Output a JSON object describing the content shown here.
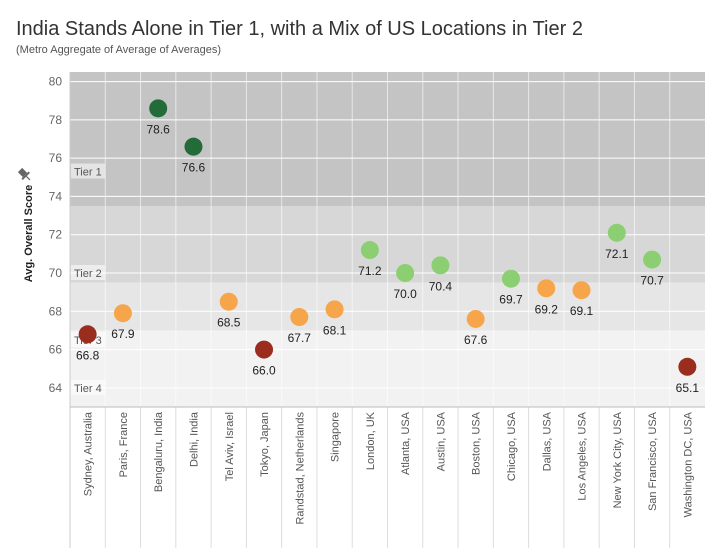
{
  "title": "India Stands Alone in Tier 1, with a Mix of US Locations in Tier 2",
  "subtitle": "(Metro Aggregate of Average of Averages)",
  "chart_data": {
    "type": "scatter",
    "ylabel": "Avg. Overall Score",
    "xlabel": "",
    "ylim": [
      63,
      80.5
    ],
    "yticks": [
      64,
      66,
      68,
      70,
      72,
      74,
      76,
      78,
      80
    ],
    "grid": true,
    "tiers": [
      {
        "label": "Tier 1",
        "min": 73.5,
        "max": 80.5,
        "color": "#c4c4c4"
      },
      {
        "label": "Tier 2",
        "min": 69.5,
        "max": 73.5,
        "color": "#d7d7d7"
      },
      {
        "label": "Tier 3",
        "min": 67.0,
        "max": 69.5,
        "color": "#e6e6e6"
      },
      {
        "label": "Tier 4",
        "min": 63.0,
        "max": 67.0,
        "color": "#f2f2f2"
      }
    ],
    "tier_label_values": [
      75.3,
      70.0,
      66.5,
      64.0
    ],
    "categories": [
      "Sydney, Australia",
      "Paris, France",
      "Bengaluru, India",
      "Delhi, India",
      "Tel Aviv, Israel",
      "Tokyo, Japan",
      "Randstad, Netherlands",
      "Singapore",
      "London, UK",
      "Atlanta, USA",
      "Austin, USA",
      "Boston, USA",
      "Chicago, USA",
      "Dallas, USA",
      "Los Angeles, USA",
      "New York City, USA",
      "San Francisco, USA",
      "Washington DC, USA"
    ],
    "values": [
      66.8,
      67.9,
      78.6,
      76.6,
      68.5,
      66.0,
      67.7,
      68.1,
      71.2,
      70.0,
      70.4,
      67.6,
      69.7,
      69.2,
      69.1,
      72.1,
      70.7,
      65.1
    ],
    "point_labels": [
      "66.8",
      "67.9",
      "78.6",
      "76.6",
      "68.5",
      "66.0",
      "67.7",
      "68.1",
      "71.2",
      "70.0",
      "70.4",
      "67.6",
      "69.7",
      "69.2",
      "69.1",
      "72.1",
      "70.7",
      "65.1"
    ],
    "colors": [
      "#9b2d1e",
      "#f7a54a",
      "#246b3a",
      "#246b3a",
      "#f7a54a",
      "#9b2d1e",
      "#f7a54a",
      "#f7a54a",
      "#8ccf72",
      "#8ccf72",
      "#8ccf72",
      "#f7a54a",
      "#8ccf72",
      "#f7a54a",
      "#f7a54a",
      "#8ccf72",
      "#8ccf72",
      "#9b2d1e"
    ],
    "label_above": [
      false,
      false,
      false,
      false,
      false,
      false,
      false,
      false,
      false,
      false,
      false,
      false,
      false,
      false,
      false,
      false,
      false,
      false
    ]
  }
}
